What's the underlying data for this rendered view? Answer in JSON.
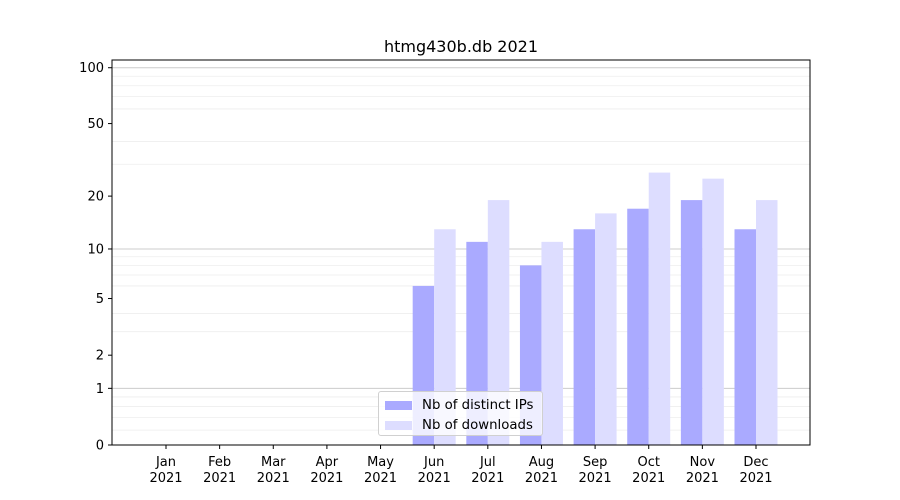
{
  "chart_data": {
    "type": "bar",
    "title": "htmg430b.db 2021",
    "xlabel": "",
    "ylabel": "",
    "y_scale": "symlog",
    "ylim": [
      0,
      110
    ],
    "yticks": [
      0,
      1,
      2,
      5,
      10,
      20,
      50,
      100
    ],
    "ytick_labels": [
      "0",
      "1",
      "2",
      "5",
      "10",
      "20",
      "50",
      "100"
    ],
    "categories": [
      "Jan\n2021",
      "Feb\n2021",
      "Mar\n2021",
      "Apr\n2021",
      "May\n2021",
      "Jun\n2021",
      "Jul\n2021",
      "Aug\n2021",
      "Sep\n2021",
      "Oct\n2021",
      "Nov\n2021",
      "Dec\n2021"
    ],
    "series": [
      {
        "name": "Nb of distinct IPs",
        "color": "#aaaaff",
        "values": [
          0,
          0,
          0,
          0,
          0,
          6,
          11,
          8,
          13,
          17,
          19,
          13
        ]
      },
      {
        "name": "Nb of downloads",
        "color": "#ddddff",
        "values": [
          0,
          0,
          0,
          0,
          0,
          13,
          19,
          11,
          16,
          27,
          25,
          19
        ]
      }
    ],
    "grid": "major and minor horizontal lines",
    "legend_position": "lower-center"
  }
}
